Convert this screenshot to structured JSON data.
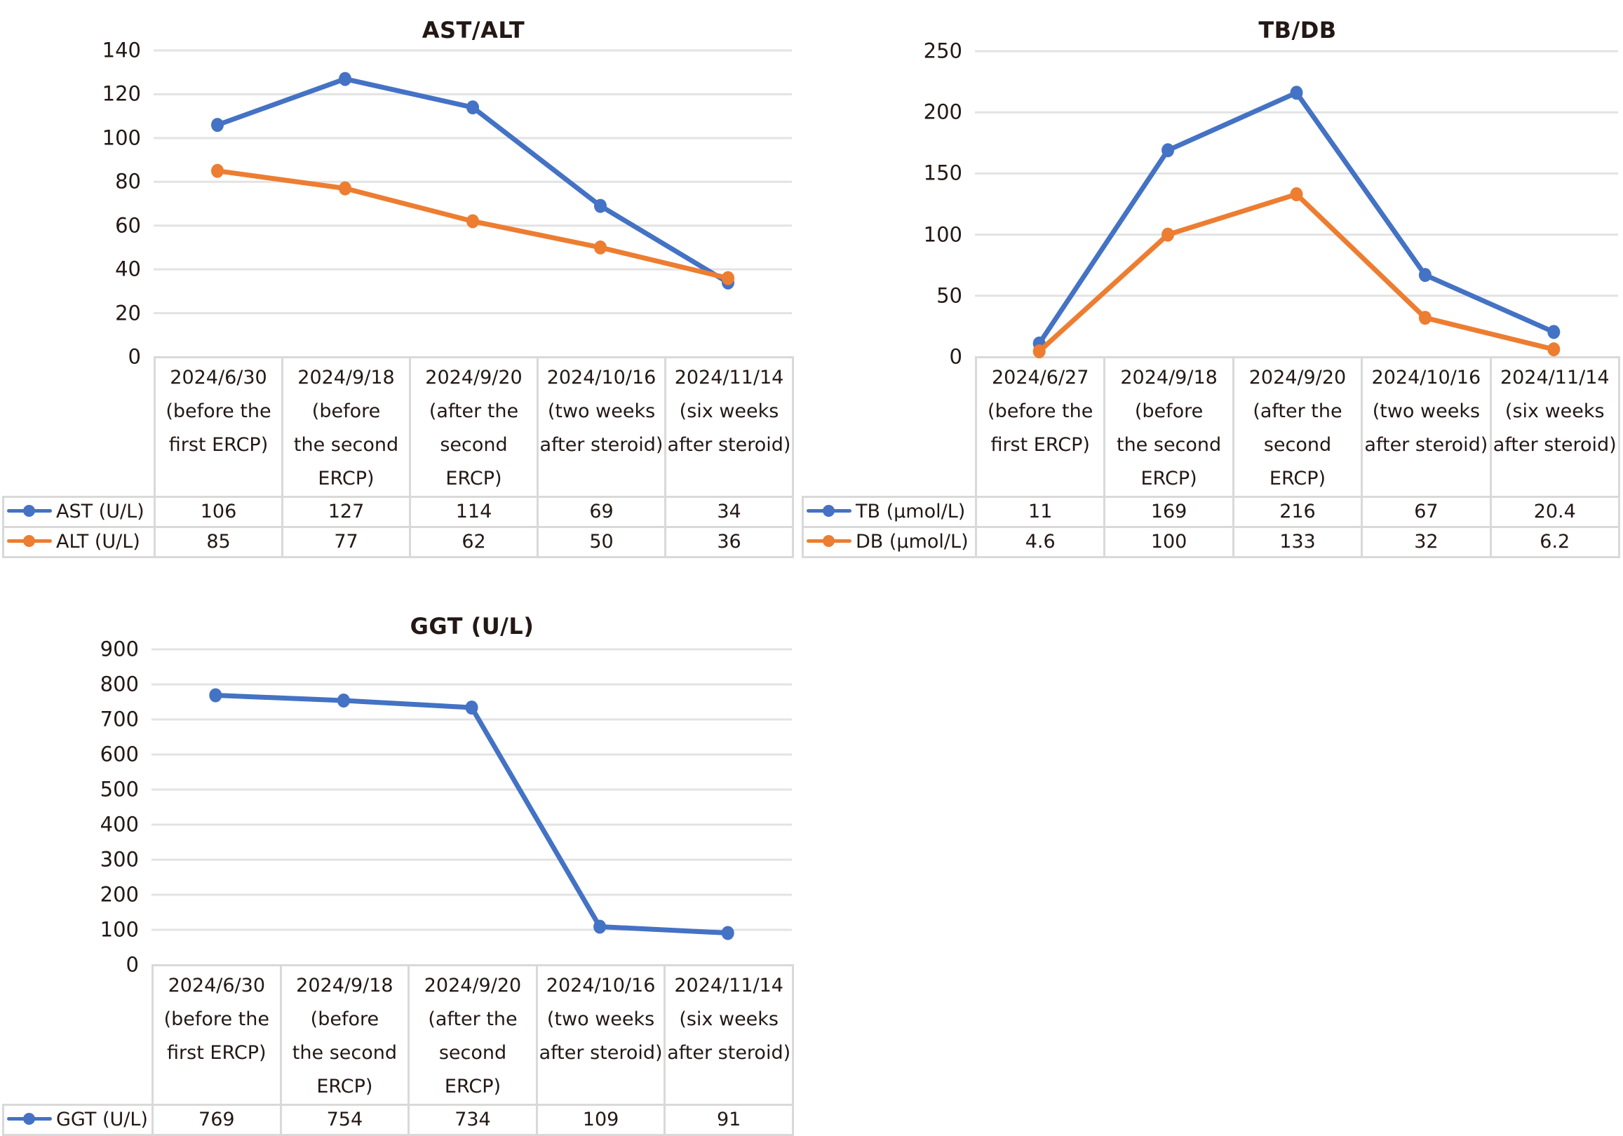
{
  "colors": {
    "series_blue": "#4472C4",
    "series_orange": "#ED7D31",
    "grid": "#e3e3e3",
    "table_border": "#d9d9d9"
  },
  "chart_data": [
    {
      "id": "ast_alt",
      "type": "line",
      "title": "AST/ALT",
      "xlabel": "",
      "ylabel": "",
      "ylim": [
        0,
        140
      ],
      "yticks": [
        0,
        20,
        40,
        60,
        80,
        100,
        120,
        140
      ],
      "yticks_labels": [
        "0",
        "20",
        "40",
        "60",
        "80",
        "100",
        "120",
        "140"
      ],
      "grid": true,
      "legend": "data-table-left",
      "categories": [
        [
          "2024/6/30",
          "(before the",
          "first ERCP)"
        ],
        [
          "2024/9/18",
          "(before",
          "the second",
          "ERCP)"
        ],
        [
          "2024/9/20",
          "(after the",
          "second",
          "ERCP)"
        ],
        [
          "2024/10/16",
          "(two weeks",
          "after steroid)"
        ],
        [
          "2024/11/14",
          "(six weeks",
          "after steroid)"
        ]
      ],
      "series": [
        {
          "name": "AST (U/L)",
          "color": "#4472C4",
          "values": [
            106,
            127,
            114,
            69,
            34
          ],
          "labels": [
            "106",
            "127",
            "114",
            "69",
            "34"
          ]
        },
        {
          "name": "ALT (U/L)",
          "color": "#ED7D31",
          "values": [
            85,
            77,
            62,
            50,
            36
          ],
          "labels": [
            "85",
            "77",
            "62",
            "50",
            "36"
          ]
        }
      ]
    },
    {
      "id": "tb_db",
      "type": "line",
      "title": "TB/DB",
      "xlabel": "",
      "ylabel": "",
      "ylim": [
        0,
        250
      ],
      "yticks": [
        0,
        50,
        100,
        150,
        200,
        250
      ],
      "yticks_labels": [
        "0",
        "50",
        "100",
        "150",
        "200",
        "250"
      ],
      "grid": true,
      "legend": "data-table-left",
      "categories": [
        [
          "2024/6/27",
          "(before the",
          "first ERCP)"
        ],
        [
          "2024/9/18",
          "(before",
          "the second",
          "ERCP)"
        ],
        [
          "2024/9/20",
          "(after the",
          "second",
          "ERCP)"
        ],
        [
          "2024/10/16",
          "(two weeks",
          "after steroid)"
        ],
        [
          "2024/11/14",
          "(six weeks",
          "after steroid)"
        ]
      ],
      "series": [
        {
          "name": "TB (μmol/L)",
          "color": "#4472C4",
          "values": [
            11,
            169,
            216,
            67,
            20.4
          ],
          "labels": [
            "11",
            "169",
            "216",
            "67",
            "20.4"
          ]
        },
        {
          "name": "DB (μmol/L)",
          "color": "#ED7D31",
          "values": [
            4.6,
            100,
            133,
            32,
            6.2
          ],
          "labels": [
            "4.6",
            "100",
            "133",
            "32",
            "6.2"
          ]
        }
      ]
    },
    {
      "id": "ggt",
      "type": "line",
      "title": "GGT (U/L)",
      "xlabel": "",
      "ylabel": "",
      "ylim": [
        0,
        900
      ],
      "yticks": [
        0,
        100,
        200,
        300,
        400,
        500,
        600,
        700,
        800,
        900
      ],
      "yticks_labels": [
        "0",
        "100",
        "200",
        "300",
        "400",
        "500",
        "600",
        "700",
        "800",
        "900"
      ],
      "grid": true,
      "legend": "data-table-left",
      "categories": [
        [
          "2024/6/30",
          "(before the",
          "first ERCP)"
        ],
        [
          "2024/9/18",
          "(before",
          "the second",
          "ERCP)"
        ],
        [
          "2024/9/20",
          "(after the",
          "second",
          "ERCP)"
        ],
        [
          "2024/10/16",
          "(two weeks",
          "after steroid)"
        ],
        [
          "2024/11/14",
          "(six weeks",
          "after steroid)"
        ]
      ],
      "series": [
        {
          "name": "GGT (U/L)",
          "color": "#4472C4",
          "values": [
            769,
            754,
            734,
            109,
            91
          ],
          "labels": [
            "769",
            "754",
            "734",
            "109",
            "91"
          ]
        }
      ]
    }
  ]
}
